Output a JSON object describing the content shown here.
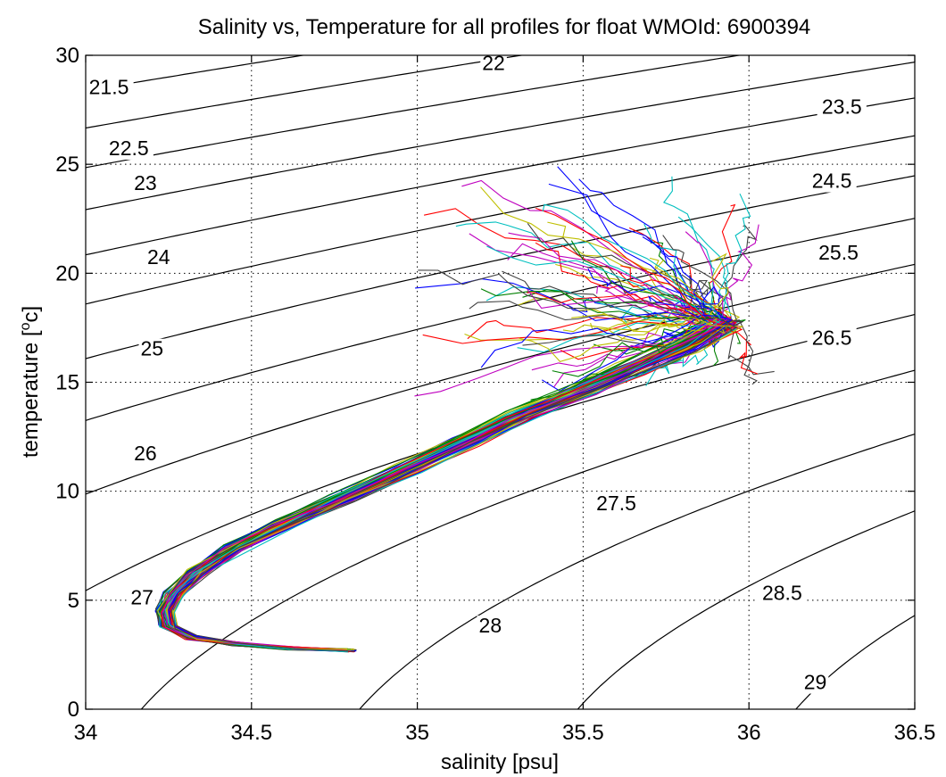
{
  "chart_data": {
    "type": "line",
    "title": "Salinity vs, Temperature for all profiles for float WMOId: 6900394",
    "xlabel": "salinity [psu]",
    "ylabel": {
      "main": "temperature [",
      "sup": "o",
      "end": "c]"
    },
    "xlim": [
      34,
      36.5
    ],
    "ylim": [
      0,
      30
    ],
    "xticks": [
      {
        "value": 34,
        "label": "34"
      },
      {
        "value": 34.5,
        "label": "34.5"
      },
      {
        "value": 35,
        "label": "35"
      },
      {
        "value": 35.5,
        "label": "35.5"
      },
      {
        "value": 36,
        "label": "36"
      },
      {
        "value": 36.5,
        "label": "36.5"
      }
    ],
    "yticks": [
      {
        "value": 0,
        "label": "0"
      },
      {
        "value": 5,
        "label": "5"
      },
      {
        "value": 10,
        "label": "10"
      },
      {
        "value": 15,
        "label": "15"
      },
      {
        "value": 20,
        "label": "20"
      },
      {
        "value": 25,
        "label": "25"
      },
      {
        "value": 30,
        "label": "30"
      }
    ],
    "grid": true,
    "isopycnals": {
      "levels": [
        21.5,
        22,
        22.5,
        23,
        23.5,
        24,
        24.5,
        25,
        25.5,
        26,
        26.5,
        27,
        27.5,
        28,
        28.5,
        29
      ],
      "labels": [
        {
          "text": "21.5",
          "s": 34.07,
          "t": 28.3
        },
        {
          "text": "22",
          "s": 35.23,
          "t": 29.4
        },
        {
          "text": "22.5",
          "s": 34.13,
          "t": 25.5
        },
        {
          "text": "23",
          "s": 34.18,
          "t": 23.9
        },
        {
          "text": "23.5",
          "s": 36.28,
          "t": 27.4
        },
        {
          "text": "24",
          "s": 34.22,
          "t": 20.5
        },
        {
          "text": "24.5",
          "s": 36.25,
          "t": 24.0
        },
        {
          "text": "25",
          "s": 34.2,
          "t": 16.3
        },
        {
          "text": "25.5",
          "s": 36.27,
          "t": 20.7
        },
        {
          "text": "26",
          "s": 34.18,
          "t": 11.5
        },
        {
          "text": "26.5",
          "s": 36.25,
          "t": 16.8
        },
        {
          "text": "27",
          "s": 34.17,
          "t": 4.9
        },
        {
          "text": "27.5",
          "s": 35.6,
          "t": 9.2
        },
        {
          "text": "28",
          "s": 35.22,
          "t": 3.6
        },
        {
          "text": "28.5",
          "s": 36.1,
          "t": 5.1
        },
        {
          "text": "29",
          "s": 36.2,
          "t": 1.0
        }
      ]
    },
    "series_colors": [
      "#0000ff",
      "#008000",
      "#ff0000",
      "#00bfbf",
      "#bf00bf",
      "#bfbf00",
      "#404040"
    ],
    "profiles_shown": 84,
    "mean_profile": [
      {
        "s": 34.8,
        "t": 2.7
      },
      {
        "s": 34.62,
        "t": 2.8
      },
      {
        "s": 34.45,
        "t": 3.0
      },
      {
        "s": 34.32,
        "t": 3.3
      },
      {
        "s": 34.25,
        "t": 3.8
      },
      {
        "s": 34.24,
        "t": 4.5
      },
      {
        "s": 34.27,
        "t": 5.3
      },
      {
        "s": 34.34,
        "t": 6.3
      },
      {
        "s": 34.45,
        "t": 7.4
      },
      {
        "s": 34.6,
        "t": 8.5
      },
      {
        "s": 34.78,
        "t": 9.7
      },
      {
        "s": 34.97,
        "t": 11.0
      },
      {
        "s": 35.15,
        "t": 12.3
      },
      {
        "s": 35.32,
        "t": 13.5
      },
      {
        "s": 35.5,
        "t": 14.6
      },
      {
        "s": 35.65,
        "t": 15.6
      },
      {
        "s": 35.8,
        "t": 16.6
      },
      {
        "s": 35.93,
        "t": 17.7
      }
    ],
    "surface_region": {
      "s_min": 34.95,
      "s_max": 36.05,
      "t_min": 12.0,
      "t_max": 25.0
    }
  }
}
